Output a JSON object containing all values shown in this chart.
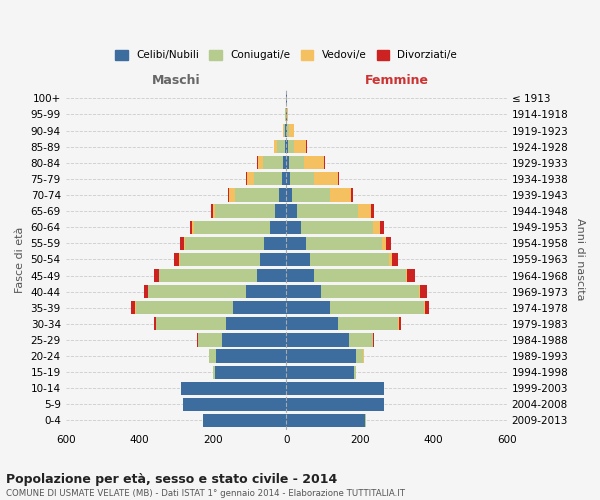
{
  "age_groups": [
    "0-4",
    "5-9",
    "10-14",
    "15-19",
    "20-24",
    "25-29",
    "30-34",
    "35-39",
    "40-44",
    "45-49",
    "50-54",
    "55-59",
    "60-64",
    "65-69",
    "70-74",
    "75-79",
    "80-84",
    "85-89",
    "90-94",
    "95-99",
    "100+"
  ],
  "birth_years": [
    "2009-2013",
    "2004-2008",
    "1999-2003",
    "1994-1998",
    "1989-1993",
    "1984-1988",
    "1979-1983",
    "1974-1978",
    "1969-1973",
    "1964-1968",
    "1959-1963",
    "1954-1958",
    "1949-1953",
    "1944-1948",
    "1939-1943",
    "1934-1938",
    "1929-1933",
    "1924-1928",
    "1919-1923",
    "1914-1918",
    "≤ 1913"
  ],
  "male_celibi": [
    225,
    280,
    285,
    195,
    190,
    175,
    165,
    145,
    110,
    80,
    70,
    60,
    45,
    30,
    20,
    12,
    8,
    4,
    2,
    1,
    1
  ],
  "male_coniugati": [
    1,
    2,
    2,
    5,
    20,
    65,
    190,
    265,
    265,
    265,
    220,
    215,
    205,
    165,
    120,
    75,
    55,
    20,
    5,
    1,
    0
  ],
  "male_vedovi": [
    0,
    0,
    0,
    0,
    0,
    0,
    0,
    1,
    1,
    1,
    2,
    3,
    5,
    5,
    15,
    20,
    15,
    8,
    3,
    0,
    0
  ],
  "male_divorziati": [
    0,
    0,
    0,
    0,
    1,
    2,
    5,
    10,
    12,
    15,
    12,
    10,
    8,
    5,
    3,
    3,
    2,
    1,
    0,
    0,
    0
  ],
  "female_nubili": [
    215,
    265,
    265,
    185,
    190,
    170,
    140,
    120,
    95,
    75,
    65,
    55,
    40,
    30,
    15,
    10,
    8,
    5,
    3,
    1,
    1
  ],
  "female_coniugate": [
    1,
    2,
    2,
    5,
    20,
    65,
    165,
    255,
    265,
    250,
    215,
    205,
    195,
    165,
    105,
    65,
    40,
    15,
    4,
    1,
    0
  ],
  "female_vedove": [
    0,
    0,
    0,
    0,
    1,
    1,
    2,
    2,
    3,
    5,
    8,
    12,
    20,
    35,
    55,
    65,
    55,
    35,
    15,
    3,
    1
  ],
  "female_divorziate": [
    0,
    0,
    0,
    0,
    1,
    2,
    5,
    12,
    20,
    20,
    15,
    12,
    12,
    10,
    8,
    5,
    3,
    2,
    0,
    0,
    0
  ],
  "colors": {
    "celibi": "#3d6d9e",
    "coniugati": "#b5cc8e",
    "vedovi": "#f5c060",
    "divorziati": "#cc2222"
  },
  "xlim": 600,
  "title": "Popolazione per età, sesso e stato civile - 2014",
  "subtitle": "COMUNE DI USMATE VELATE (MB) - Dati ISTAT 1° gennaio 2014 - Elaborazione TUTTITALIA.IT",
  "ylabel_left": "Fasce di età",
  "ylabel_right": "Anni di nascita",
  "xlabel_left": "Maschi",
  "xlabel_right": "Femmine",
  "bg_color": "#f5f5f5",
  "grid_color": "#cccccc"
}
